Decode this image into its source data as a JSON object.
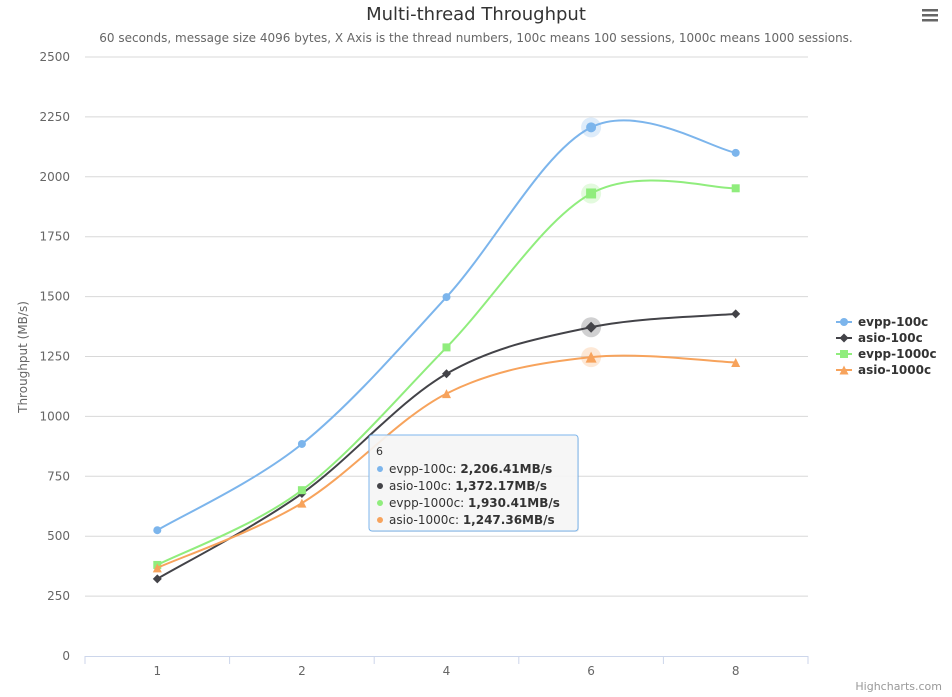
{
  "menu_icon": "hamburger-menu-icon",
  "credits": "Highcharts.com",
  "chart_data": {
    "type": "line",
    "title": "Multi-thread Throughput",
    "subtitle": "60 seconds, message size 4096 bytes, X Axis is the thread numbers, 100c means 100 sessions, 1000c means 1000 sessions.",
    "xlabel": "",
    "ylabel": "Throughput (MB/s)",
    "categories": [
      "1",
      "2",
      "4",
      "6",
      "8"
    ],
    "ylim": [
      0,
      2500
    ],
    "yticks": [
      0,
      250,
      500,
      750,
      1000,
      1250,
      1500,
      1750,
      2000,
      2250,
      2500
    ],
    "grid": true,
    "legend_position": "right",
    "series": [
      {
        "name": "evpp-100c",
        "color": "#7cb5ec",
        "marker": "circle",
        "values": [
          525,
          885,
          1498,
          2206.41,
          2100
        ]
      },
      {
        "name": "asio-100c",
        "color": "#434348",
        "marker": "diamond",
        "values": [
          322,
          678,
          1178,
          1372.17,
          1428
        ]
      },
      {
        "name": "evpp-1000c",
        "color": "#90ed7d",
        "marker": "square",
        "values": [
          380,
          692,
          1288,
          1930.41,
          1952
        ]
      },
      {
        "name": "asio-1000c",
        "color": "#f7a35c",
        "marker": "triangle",
        "values": [
          368,
          638,
          1095,
          1247.36,
          1225
        ]
      }
    ],
    "tooltip": {
      "header": "6",
      "category_index": 3,
      "rows": [
        {
          "name": "evpp-100c",
          "value": "2,206.41MB/s"
        },
        {
          "name": "asio-100c",
          "value": "1,372.17MB/s"
        },
        {
          "name": "evpp-1000c",
          "value": "1,930.41MB/s"
        },
        {
          "name": "asio-1000c",
          "value": "1,247.36MB/s"
        }
      ]
    }
  }
}
